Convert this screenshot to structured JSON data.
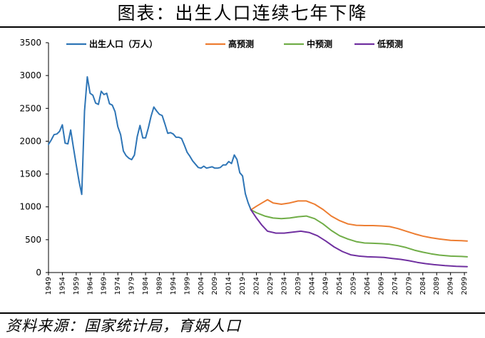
{
  "page": {
    "title": "图表：出生人口连续七年下降",
    "source": "资料来源：国家统计局，育娲人口"
  },
  "colors": {
    "historical": "#2e75b6",
    "high": "#ed7d31",
    "mid": "#70ad47",
    "low": "#7030a0",
    "axis": "#000000"
  },
  "chart_data": {
    "type": "line",
    "ylim": [
      0,
      3500
    ],
    "yticks": [
      0,
      500,
      1000,
      1500,
      2000,
      2500,
      3000,
      3500
    ],
    "xlim": [
      1949,
      2100
    ],
    "xticks": [
      1949,
      1954,
      1959,
      1964,
      1969,
      1974,
      1979,
      1984,
      1989,
      1994,
      1999,
      2004,
      2009,
      2014,
      2019,
      2024,
      2029,
      2034,
      2039,
      2044,
      2049,
      2054,
      2059,
      2064,
      2069,
      2074,
      2079,
      2084,
      2089,
      2094,
      2099
    ],
    "grid": false,
    "legend_position": "top",
    "series": [
      {
        "name": "出生人口（万人）",
        "color_key": "historical",
        "points": [
          [
            1949,
            1950
          ],
          [
            1950,
            2020
          ],
          [
            1951,
            2100
          ],
          [
            1952,
            2110
          ],
          [
            1953,
            2150
          ],
          [
            1954,
            2250
          ],
          [
            1955,
            1970
          ],
          [
            1956,
            1960
          ],
          [
            1957,
            2170
          ],
          [
            1958,
            1900
          ],
          [
            1959,
            1640
          ],
          [
            1960,
            1390
          ],
          [
            1961,
            1190
          ],
          [
            1962,
            2460
          ],
          [
            1963,
            2980
          ],
          [
            1964,
            2730
          ],
          [
            1965,
            2700
          ],
          [
            1966,
            2580
          ],
          [
            1967,
            2560
          ],
          [
            1968,
            2760
          ],
          [
            1969,
            2710
          ],
          [
            1970,
            2730
          ],
          [
            1971,
            2570
          ],
          [
            1972,
            2550
          ],
          [
            1973,
            2450
          ],
          [
            1974,
            2220
          ],
          [
            1975,
            2100
          ],
          [
            1976,
            1850
          ],
          [
            1977,
            1780
          ],
          [
            1978,
            1740
          ],
          [
            1979,
            1720
          ],
          [
            1980,
            1790
          ],
          [
            1981,
            2070
          ],
          [
            1982,
            2240
          ],
          [
            1983,
            2050
          ],
          [
            1984,
            2050
          ],
          [
            1985,
            2200
          ],
          [
            1986,
            2380
          ],
          [
            1987,
            2520
          ],
          [
            1988,
            2460
          ],
          [
            1989,
            2410
          ],
          [
            1990,
            2390
          ],
          [
            1991,
            2260
          ],
          [
            1992,
            2120
          ],
          [
            1993,
            2130
          ],
          [
            1994,
            2110
          ],
          [
            1995,
            2060
          ],
          [
            1996,
            2060
          ],
          [
            1997,
            2040
          ],
          [
            1998,
            1940
          ],
          [
            1999,
            1830
          ],
          [
            2000,
            1770
          ],
          [
            2001,
            1700
          ],
          [
            2002,
            1650
          ],
          [
            2003,
            1600
          ],
          [
            2004,
            1590
          ],
          [
            2005,
            1620
          ],
          [
            2006,
            1590
          ],
          [
            2007,
            1600
          ],
          [
            2008,
            1610
          ],
          [
            2009,
            1590
          ],
          [
            2010,
            1590
          ],
          [
            2011,
            1600
          ],
          [
            2012,
            1640
          ],
          [
            2013,
            1640
          ],
          [
            2014,
            1690
          ],
          [
            2015,
            1660
          ],
          [
            2016,
            1790
          ],
          [
            2017,
            1720
          ],
          [
            2018,
            1520
          ],
          [
            2019,
            1470
          ],
          [
            2020,
            1200
          ],
          [
            2021,
            1062
          ],
          [
            2022,
            956
          ]
        ]
      },
      {
        "name": "高预测",
        "color_key": "high",
        "points": [
          [
            2022,
            956
          ],
          [
            2024,
            1010
          ],
          [
            2026,
            1060
          ],
          [
            2028,
            1110
          ],
          [
            2030,
            1060
          ],
          [
            2033,
            1040
          ],
          [
            2036,
            1060
          ],
          [
            2039,
            1090
          ],
          [
            2042,
            1090
          ],
          [
            2045,
            1040
          ],
          [
            2048,
            960
          ],
          [
            2051,
            860
          ],
          [
            2054,
            790
          ],
          [
            2057,
            740
          ],
          [
            2060,
            720
          ],
          [
            2063,
            715
          ],
          [
            2066,
            715
          ],
          [
            2069,
            710
          ],
          [
            2072,
            700
          ],
          [
            2075,
            670
          ],
          [
            2078,
            630
          ],
          [
            2081,
            590
          ],
          [
            2084,
            555
          ],
          [
            2087,
            530
          ],
          [
            2090,
            510
          ],
          [
            2094,
            490
          ],
          [
            2098,
            485
          ],
          [
            2100,
            480
          ]
        ]
      },
      {
        "name": "中预测",
        "color_key": "mid",
        "points": [
          [
            2022,
            956
          ],
          [
            2024,
            910
          ],
          [
            2027,
            860
          ],
          [
            2030,
            830
          ],
          [
            2033,
            820
          ],
          [
            2036,
            830
          ],
          [
            2039,
            850
          ],
          [
            2042,
            860
          ],
          [
            2045,
            820
          ],
          [
            2048,
            740
          ],
          [
            2051,
            640
          ],
          [
            2054,
            560
          ],
          [
            2057,
            510
          ],
          [
            2060,
            470
          ],
          [
            2063,
            450
          ],
          [
            2066,
            445
          ],
          [
            2069,
            440
          ],
          [
            2072,
            430
          ],
          [
            2075,
            410
          ],
          [
            2078,
            380
          ],
          [
            2081,
            340
          ],
          [
            2084,
            310
          ],
          [
            2087,
            285
          ],
          [
            2090,
            265
          ],
          [
            2094,
            250
          ],
          [
            2098,
            245
          ],
          [
            2100,
            240
          ]
        ]
      },
      {
        "name": "低预测",
        "color_key": "low",
        "points": [
          [
            2022,
            956
          ],
          [
            2024,
            830
          ],
          [
            2026,
            720
          ],
          [
            2028,
            630
          ],
          [
            2031,
            600
          ],
          [
            2034,
            600
          ],
          [
            2037,
            615
          ],
          [
            2040,
            630
          ],
          [
            2043,
            610
          ],
          [
            2046,
            560
          ],
          [
            2049,
            480
          ],
          [
            2052,
            390
          ],
          [
            2055,
            320
          ],
          [
            2058,
            270
          ],
          [
            2061,
            250
          ],
          [
            2064,
            240
          ],
          [
            2067,
            235
          ],
          [
            2070,
            230
          ],
          [
            2073,
            215
          ],
          [
            2076,
            200
          ],
          [
            2079,
            180
          ],
          [
            2082,
            155
          ],
          [
            2085,
            135
          ],
          [
            2088,
            120
          ],
          [
            2092,
            105
          ],
          [
            2096,
            95
          ],
          [
            2100,
            90
          ]
        ]
      }
    ]
  }
}
